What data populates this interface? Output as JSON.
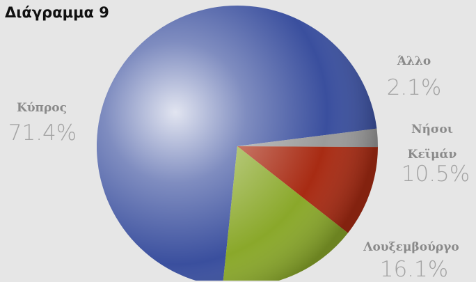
{
  "chart_data": {
    "type": "pie",
    "title": "Διάγραμμα 9",
    "slices": [
      {
        "label": "Κύπρος",
        "value": 71.4,
        "display": "71.4%",
        "color": "#3a4f9e"
      },
      {
        "label": "Λουξεμβούργο",
        "value": 16.1,
        "display": "16.1%",
        "color": "#8aa82a"
      },
      {
        "label": "Νήσοι Κεϊμάν",
        "value": 10.5,
        "display": "10.5%",
        "color": "#a82b13"
      },
      {
        "label": "Άλλο",
        "value": 2.1,
        "display": "2.1%",
        "color": "#9a9a9a"
      }
    ]
  }
}
